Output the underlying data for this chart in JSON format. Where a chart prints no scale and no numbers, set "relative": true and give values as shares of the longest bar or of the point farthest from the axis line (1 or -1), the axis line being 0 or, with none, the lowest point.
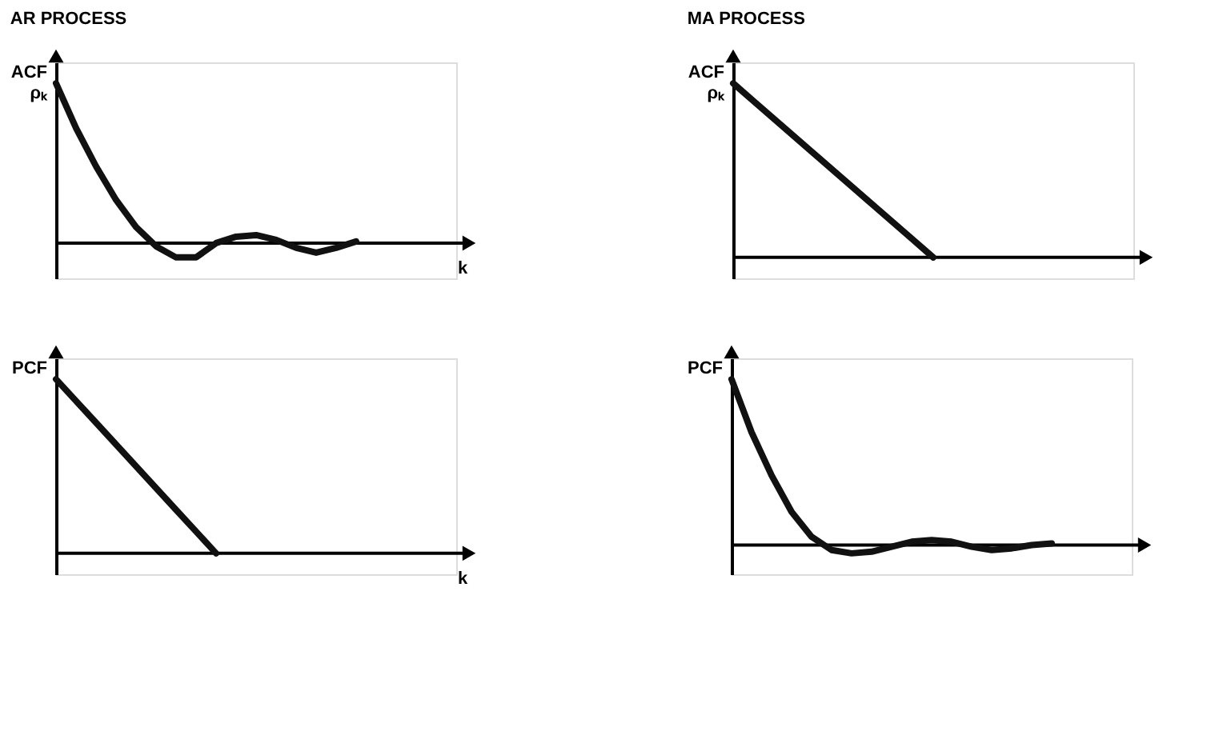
{
  "chart_data": [
    {
      "type": "line",
      "title": "AR PROCESS",
      "ylabel": "ACF ρₖ",
      "xlabel": "k",
      "relative": true,
      "categories": [
        null,
        null,
        null,
        null,
        null,
        null,
        null,
        null,
        null,
        null,
        null,
        null,
        null,
        null,
        null,
        null,
        null,
        null,
        null,
        null,
        null
      ],
      "series": [
        {
          "color": "#111111",
          "values": [
            1.0,
            0.72,
            0.48,
            0.27,
            0.1,
            -0.02,
            -0.09,
            -0.09,
            0.0,
            0.04,
            0.05,
            0.02,
            -0.03,
            -0.06,
            -0.03,
            0.01,
            null,
            null,
            null,
            null,
            null
          ]
        }
      ]
    },
    {
      "type": "line",
      "title": "MA PROCESS",
      "ylabel": "ACF ρₖ",
      "relative": true,
      "categories": [
        null,
        null,
        null,
        null,
        null,
        null,
        null,
        null,
        null,
        null,
        null,
        null,
        null,
        null,
        null,
        null,
        null,
        null,
        null,
        null,
        null
      ],
      "series": [
        {
          "color": "#111111",
          "values": [
            1.0,
            0.9,
            0.8,
            0.7,
            0.6,
            0.5,
            0.4,
            0.3,
            0.2,
            0.1,
            0.0,
            null,
            null,
            null,
            null,
            null,
            null,
            null,
            null,
            null,
            null
          ]
        }
      ]
    },
    {
      "type": "line",
      "ylabel": "PCF",
      "xlabel": "k",
      "relative": true,
      "categories": [
        null,
        null,
        null,
        null,
        null,
        null,
        null,
        null,
        null,
        null,
        null,
        null,
        null,
        null,
        null,
        null,
        null,
        null,
        null,
        null,
        null
      ],
      "series": [
        {
          "color": "#111111",
          "values": [
            1.0,
            0.875,
            0.75,
            0.625,
            0.5,
            0.375,
            0.25,
            0.125,
            0.0,
            null,
            null,
            null,
            null,
            null,
            null,
            null,
            null,
            null,
            null,
            null,
            null
          ]
        }
      ]
    },
    {
      "type": "line",
      "ylabel": "PCF",
      "relative": true,
      "categories": [
        null,
        null,
        null,
        null,
        null,
        null,
        null,
        null,
        null,
        null,
        null,
        null,
        null,
        null,
        null,
        null,
        null,
        null,
        null,
        null,
        null
      ],
      "series": [
        {
          "color": "#111111",
          "values": [
            1.0,
            0.68,
            0.42,
            0.2,
            0.05,
            -0.03,
            -0.05,
            -0.04,
            -0.01,
            0.02,
            0.03,
            0.02,
            -0.01,
            -0.03,
            -0.02,
            0.0,
            0.01,
            null,
            null,
            null,
            null
          ]
        }
      ]
    }
  ]
}
